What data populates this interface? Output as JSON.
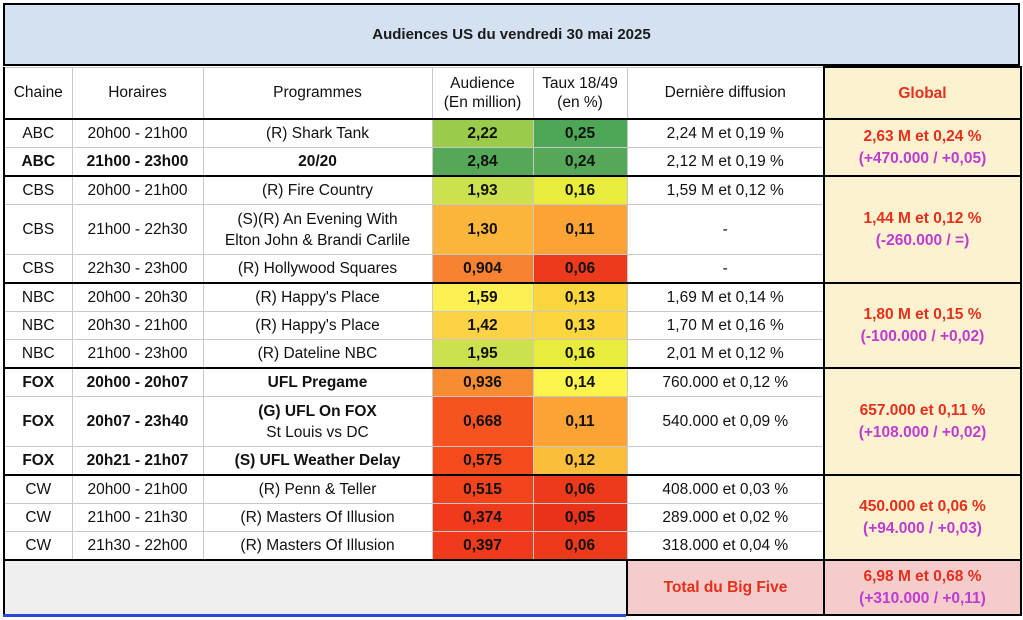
{
  "title": "Audiences US du vendredi 30 mai 2025",
  "headers": {
    "chaine": "Chaine",
    "horaires": "Horaires",
    "programmes": "Programmes",
    "audience_l1": "Audience",
    "audience_l2": "(En million)",
    "taux_l1": "Taux 18/49",
    "taux_l2": "(en %)",
    "derniere": "Dernière diffusion",
    "global": "Global"
  },
  "rows": [
    {
      "chaine": "ABC",
      "horaires": "20h00 - 21h00",
      "programme": "(R) Shark Tank",
      "audience": "2,22",
      "taux": "0,25",
      "derniere": "2,24 M et 0,19 %",
      "aud_color": "#9acc4a",
      "taux_color": "#4da757"
    },
    {
      "chaine": "ABC",
      "horaires": "21h00 - 23h00",
      "programme": "20/20",
      "audience": "2,84",
      "taux": "0,24",
      "derniere": "2,12 M et 0,19 %",
      "aud_color": "#55a858",
      "taux_color": "#55a858"
    },
    {
      "chaine": "CBS",
      "horaires": "20h00 - 21h00",
      "programme": "(R) Fire Country",
      "audience": "1,93",
      "taux": "0,16",
      "derniere": "1,59 M et 0,12 %",
      "aud_color": "#cde04d",
      "taux_color": "#e8ec3d"
    },
    {
      "chaine": "CBS",
      "horaires": "21h00 - 22h30",
      "programme_l1": "(S)(R) An Evening With",
      "programme_l2": "Elton John & Brandi Carlile",
      "audience": "1,30",
      "taux": "0,11",
      "derniere": "-",
      "aud_color": "#fbb53a",
      "taux_color": "#fba335"
    },
    {
      "chaine": "CBS",
      "horaires": "22h30 - 23h00",
      "programme": "(R) Hollywood Squares",
      "audience": "0,904",
      "taux": "0,06",
      "derniere": "-",
      "aud_color": "#f78232",
      "taux_color": "#ec3a1b"
    },
    {
      "chaine": "NBC",
      "horaires": "20h00 - 20h30",
      "programme": "(R) Happy's Place",
      "audience": "1,59",
      "taux": "0,13",
      "derniere": "1,69 M et 0,14 %",
      "aud_color": "#fdf054",
      "taux_color": "#fbd63e"
    },
    {
      "chaine": "NBC",
      "horaires": "20h30 - 21h00",
      "programme": "(R) Happy's Place",
      "audience": "1,42",
      "taux": "0,13",
      "derniere": "1,70 M et 0,16 %",
      "aud_color": "#fdd345",
      "taux_color": "#fbd63e"
    },
    {
      "chaine": "NBC",
      "horaires": "21h00 - 23h00",
      "programme": "(R) Dateline NBC",
      "audience": "1,95",
      "taux": "0,16",
      "derniere": "2,01 M et 0,12 %",
      "aud_color": "#cde04d",
      "taux_color": "#e8ec3d"
    },
    {
      "chaine": "FOX",
      "horaires": "20h00 - 20h07",
      "programme": "UFL Pregame",
      "audience": "0,936",
      "taux": "0,14",
      "derniere": "760.000 et 0,12 %",
      "aud_color": "#f78c33",
      "taux_color": "#fdf54d"
    },
    {
      "chaine": "FOX",
      "horaires": "20h07 - 23h40",
      "programme_l1": "(G) UFL On FOX",
      "programme_l2": "St Louis vs DC",
      "audience": "0,668",
      "taux": "0,11",
      "derniere": "540.000 et 0,09 %",
      "aud_color": "#f65320",
      "taux_color": "#fba335"
    },
    {
      "chaine": "FOX",
      "horaires": "20h21 - 21h07",
      "programme": "(S) UFL Weather Delay",
      "audience": "0,575",
      "taux": "0,12",
      "derniere": "",
      "aud_color": "#f44a1c",
      "taux_color": "#fbbd3c"
    },
    {
      "chaine": "CW",
      "horaires": "20h00 - 21h00",
      "programme": "(R) Penn & Teller",
      "audience": "0,515",
      "taux": "0,06",
      "derniere": "408.000 et 0,03 %",
      "aud_color": "#f3441c",
      "taux_color": "#ec3a1b"
    },
    {
      "chaine": "CW",
      "horaires": "21h00 - 21h30",
      "programme": "(R) Masters Of Illusion",
      "audience": "0,374",
      "taux": "0,05",
      "derniere": "289.000 et 0,02 %",
      "aud_color": "#ef3a1b",
      "taux_color": "#e8331a"
    },
    {
      "chaine": "CW",
      "horaires": "21h30 - 22h00",
      "programme": "(R) Masters Of Illusion",
      "audience": "0,397",
      "taux": "0,06",
      "derniere": "318.000 et 0,04 %",
      "aud_color": "#ef3b1b",
      "taux_color": "#ec3a1b"
    }
  ],
  "globals": {
    "abc_l1": "2,63 M et 0,24 %",
    "abc_l2": "(+470.000 / +0,05)",
    "cbs_l1": "1,44 M et 0,12 %",
    "cbs_l2": "(-260.000 / =)",
    "nbc_l1": "1,80 M et 0,15 %",
    "nbc_l2": "(-100.000 / +0,02)",
    "fox_l1": "657.000 et 0,11 %",
    "fox_l2": "(+108.000 / +0,02)",
    "cw_l1": "450.000 et 0,06 %",
    "cw_l2": "(+94.000 / +0,03)"
  },
  "footer": {
    "label": "Total du Big Five",
    "value_l1": "6,98 M et 0,68 %",
    "value_l2": "(+310.000 / +0,11)"
  }
}
